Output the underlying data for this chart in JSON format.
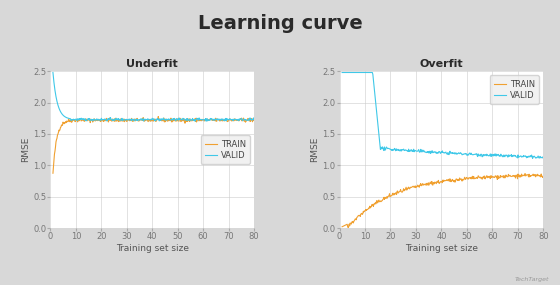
{
  "title": "Learning curve",
  "title_fontsize": 14,
  "title_fontweight": "bold",
  "title_color": "#2a2a2a",
  "bg_color": "#d8d8d8",
  "plot_bg_color": "#ffffff",
  "subplot1_title": "Underfit",
  "subplot2_title": "Overfit",
  "xlabel": "Training set size",
  "ylabel": "RMSE",
  "ylim": [
    0.0,
    2.5
  ],
  "xlim": [
    0,
    80
  ],
  "xticks": [
    0,
    10,
    20,
    30,
    40,
    50,
    60,
    70,
    80
  ],
  "yticks": [
    0.0,
    0.5,
    1.0,
    1.5,
    2.0,
    2.5
  ],
  "train_color": "#f0a030",
  "valid_color": "#40c8e8",
  "legend_labels": [
    "TRAIN",
    "VALID"
  ],
  "subtitle_fontsize": 8,
  "axis_fontsize": 6,
  "label_fontsize": 6.5,
  "legend_fontsize": 6
}
